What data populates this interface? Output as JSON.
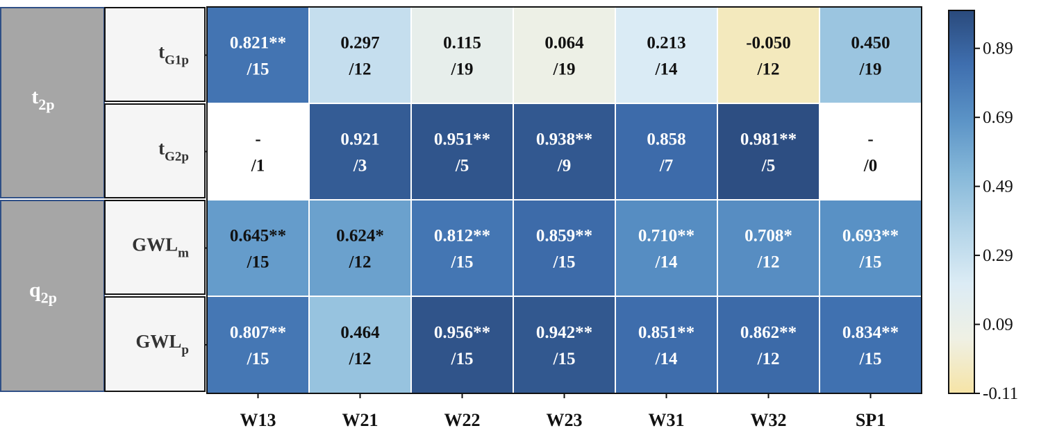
{
  "chart_data": {
    "type": "heatmap",
    "columns": [
      "W13",
      "W21",
      "W22",
      "W23",
      "W31",
      "W32",
      "SP1"
    ],
    "groups": [
      {
        "label": "t",
        "sub": "2p",
        "rows": [
          0,
          1
        ]
      },
      {
        "label": "q",
        "sub": "2p",
        "rows": [
          2,
          3
        ]
      }
    ],
    "rows": [
      {
        "label": "t",
        "sub": "G1p",
        "values": [
          0.821,
          0.297,
          0.115,
          0.064,
          0.213,
          -0.05,
          0.45
        ],
        "line1": [
          "0.821**",
          "0.297",
          "0.115",
          "0.064",
          "0.213",
          "-0.050",
          "0.450"
        ],
        "line2": [
          "/15",
          "/12",
          "/19",
          "/19",
          "/14",
          "/12",
          "/19"
        ]
      },
      {
        "label": "t",
        "sub": "G2p",
        "values": [
          null,
          0.921,
          0.951,
          0.938,
          0.858,
          0.981,
          null
        ],
        "line1": [
          "-",
          "0.921",
          "0.951**",
          "0.938**",
          "0.858",
          "0.981**",
          "-"
        ],
        "line2": [
          "/1",
          "/3",
          "/5",
          "/9",
          "/7",
          "/5",
          "/0"
        ]
      },
      {
        "label": "GWL",
        "sub": "m",
        "values": [
          0.645,
          0.624,
          0.812,
          0.859,
          0.71,
          0.708,
          0.693
        ],
        "line1": [
          "0.645**",
          "0.624*",
          "0.812**",
          "0.859**",
          "0.710**",
          "0.708*",
          "0.693**"
        ],
        "line2": [
          "/15",
          "/12",
          "/15",
          "/15",
          "/14",
          "/12",
          "/15"
        ]
      },
      {
        "label": "GWL",
        "sub": "p",
        "values": [
          0.807,
          0.464,
          0.956,
          0.942,
          0.851,
          0.862,
          0.834
        ],
        "line1": [
          "0.807**",
          "0.464",
          "0.956**",
          "0.942**",
          "0.851**",
          "0.862**",
          "0.834**"
        ],
        "line2": [
          "/15",
          "/12",
          "/15",
          "/15",
          "/14",
          "/12",
          "/15"
        ]
      }
    ],
    "colorbar": {
      "min": -0.11,
      "max": 1.0,
      "ticks": [
        0.89,
        0.69,
        0.49,
        0.29,
        0.09,
        -0.11
      ],
      "tick_labels": [
        "0.89",
        "0.69",
        "0.49",
        "0.29",
        "0.09",
        "-0.11"
      ]
    },
    "colormap": [
      "#f6e4a6",
      "#eff0e4",
      "#dcecf5",
      "#b3d4e8",
      "#86b8d9",
      "#5b93c6",
      "#3f6faf",
      "#2a4a7c"
    ]
  }
}
